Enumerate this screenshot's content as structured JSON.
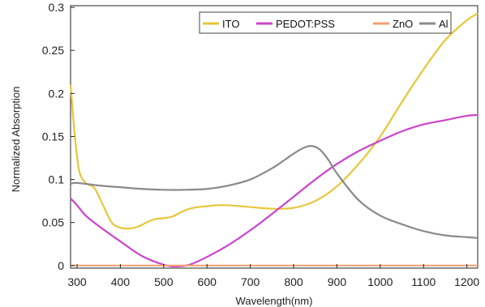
{
  "chart_data": {
    "type": "line",
    "xlabel": "Wavelength(nm)",
    "ylabel": "Normalized Absorption",
    "xlim": [
      285,
      1225
    ],
    "ylim": [
      -0.003,
      0.302
    ],
    "xticks": [
      300,
      400,
      500,
      600,
      700,
      800,
      900,
      1000,
      1100,
      1200
    ],
    "yticks": [
      0,
      0.05,
      0.1,
      0.15,
      0.2,
      0.25,
      0.3
    ],
    "ytick_labels": [
      "0",
      "0.05",
      "0.1",
      "0.15",
      "0.2",
      "0.25",
      "0.3"
    ],
    "grid": false,
    "legend_position": "top-right",
    "series": [
      {
        "name": "ITO",
        "color": "#e8c63a",
        "x": [
          285,
          295,
          305,
          320,
          340,
          360,
          380,
          400,
          420,
          440,
          460,
          480,
          500,
          520,
          540,
          560,
          580,
          600,
          620,
          650,
          700,
          750,
          800,
          850,
          900,
          950,
          1000,
          1050,
          1100,
          1150,
          1200,
          1225
        ],
        "y": [
          0.21,
          0.15,
          0.11,
          0.096,
          0.09,
          0.07,
          0.05,
          0.044,
          0.043,
          0.045,
          0.05,
          0.054,
          0.055,
          0.057,
          0.062,
          0.066,
          0.068,
          0.069,
          0.07,
          0.07,
          0.068,
          0.066,
          0.067,
          0.075,
          0.092,
          0.118,
          0.15,
          0.19,
          0.228,
          0.262,
          0.285,
          0.293
        ]
      },
      {
        "name": "PEDOT:PSS",
        "color": "#cc44cc",
        "x": [
          285,
          300,
          320,
          350,
          400,
          450,
          500,
          530,
          560,
          600,
          650,
          700,
          750,
          800,
          850,
          900,
          950,
          1000,
          1050,
          1100,
          1150,
          1200,
          1225
        ],
        "y": [
          0.078,
          0.07,
          0.058,
          0.046,
          0.028,
          0.011,
          0.001,
          -0.001,
          0.001,
          0.01,
          0.024,
          0.041,
          0.06,
          0.08,
          0.1,
          0.118,
          0.133,
          0.145,
          0.156,
          0.164,
          0.169,
          0.174,
          0.175
        ]
      },
      {
        "name": "ZnO",
        "color": "#f0a070",
        "x": [
          285,
          1225
        ],
        "y": [
          0,
          0
        ]
      },
      {
        "name": "Al",
        "color": "#8a8a8a",
        "x": [
          285,
          300,
          350,
          400,
          450,
          500,
          550,
          600,
          650,
          700,
          750,
          780,
          800,
          820,
          840,
          860,
          880,
          900,
          950,
          1000,
          1050,
          1100,
          1150,
          1200,
          1225
        ],
        "y": [
          0.095,
          0.096,
          0.093,
          0.091,
          0.089,
          0.088,
          0.088,
          0.089,
          0.093,
          0.1,
          0.113,
          0.123,
          0.13,
          0.136,
          0.139,
          0.135,
          0.123,
          0.107,
          0.076,
          0.058,
          0.048,
          0.04,
          0.035,
          0.033,
          0.032
        ]
      }
    ]
  }
}
